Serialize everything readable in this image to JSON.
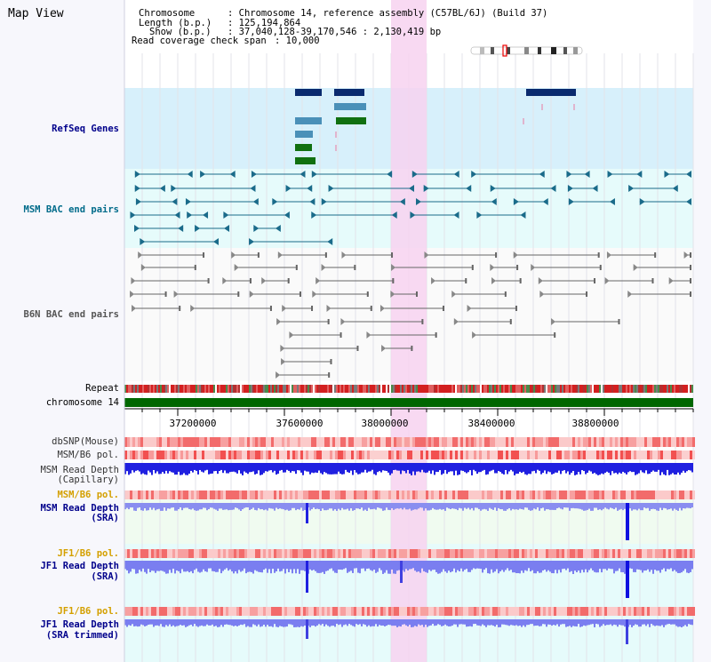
{
  "title": "Map View",
  "info": {
    "chromosome_key": "Chromosome",
    "chromosome_val": ": Chromosome 14, reference assembly (C57BL/6J) (Build 37)",
    "length_key": "Length (b.p.)",
    "length_val": ": 125,194,864",
    "show_key": "Show (b.p.)",
    "show_val": ": 37,040,128-39,170,546 : 2,130,419 bp",
    "span_key": "Read coverage check span",
    "span_val": ": 10,000"
  },
  "tracks": {
    "refseq": "RefSeq Genes",
    "msm_bac": "MSM BAC end pairs",
    "b6n_bac": "B6N BAC end pairs",
    "repeat": "Repeat",
    "chromosome": "chromosome 14",
    "dbsnp": "dbSNP(Mouse)",
    "msm_b6_pol_1": "MSM/B6 pol.",
    "msm_read_depth_cap_1": "MSM Read Depth",
    "msm_read_depth_cap_2": "(Capillary)",
    "msm_b6_pol_2": "MSM/B6 pol.",
    "msm_read_depth_sra_1": "MSM Read Depth",
    "msm_read_depth_sra_2": "(SRA)",
    "jf1_b6_pol_1": "JF1/B6 pol.",
    "jf1_read_depth_1": "JF1 Read Depth",
    "jf1_read_depth_2": "(SRA)",
    "jf1_b6_pol_2": "JF1/B6 pol.",
    "jf1_read_depth_trim_1": "JF1 Read Depth",
    "jf1_read_depth_trim_2": "(SRA trimmed)"
  },
  "axis": {
    "ticks": [
      "37200000",
      "37600000",
      "38000000",
      "38400000",
      "38800000"
    ]
  },
  "colors": {
    "refseq_bg": "#d7f0fb",
    "bac_bg": "#e6fbfb",
    "highlight": "#f7d2f0",
    "label_blue": "#00008b",
    "label_teal": "#006b8a",
    "label_gray": "#444444",
    "label_orange": "#d4a000",
    "chrom_green": "#006600"
  }
}
